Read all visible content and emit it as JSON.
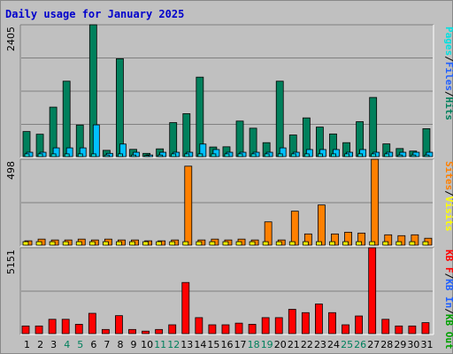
{
  "chart_data": {
    "type": "bar",
    "title": "Daily usage for January 2025",
    "colors": {
      "title": "#0000cc",
      "hits": "#00805c",
      "files": "#00c0ff",
      "pages": "#00e0e0",
      "visits": "#ffff00",
      "sites": "#ff8000",
      "kb_in": "#2060ff",
      "kb_out": "#00a000",
      "kb_f": "#ff0000",
      "weekend_day": "#00805c",
      "weekday": "#000000"
    },
    "x_labels": [
      "1",
      "2",
      "3",
      "4",
      "5",
      "6",
      "7",
      "8",
      "9",
      "10",
      "11",
      "12",
      "13",
      "14",
      "15",
      "16",
      "17",
      "18",
      "19",
      "20",
      "21",
      "22",
      "23",
      "24",
      "25",
      "26",
      "27",
      "28",
      "29",
      "30",
      "31"
    ],
    "weekend_days": [
      4,
      5,
      11,
      12,
      18,
      19,
      25,
      26
    ],
    "panels": [
      {
        "id": "hits_files",
        "ymax": 2405,
        "ymax_label": "2405",
        "legend": [
          {
            "text": "Pages",
            "color": "#00e0e0"
          },
          {
            "text": "/",
            "color": "#000000"
          },
          {
            "text": "Files",
            "color": "#2060ff"
          },
          {
            "text": "/",
            "color": "#000000"
          },
          {
            "text": "Hits",
            "color": "#00805c"
          }
        ],
        "series": [
          {
            "name": "Hits",
            "color": "#00805c",
            "values": [
              458,
              409,
              903,
              1376,
              577,
              2405,
              115,
              1786,
              133,
              60,
              142,
              621,
              784,
              1450,
              176,
              180,
              649,
              519,
              255,
              1376,
              395,
              707,
              539,
              414,
              255,
              638,
              1080,
              233,
              148,
              102,
              510
            ]
          },
          {
            "name": "Files",
            "color": "#00c0ff",
            "values": [
              80,
              80,
              160,
              160,
              160,
              580,
              60,
              230,
              80,
              30,
              80,
              80,
              80,
              230,
              130,
              80,
              80,
              80,
              80,
              160,
              80,
              130,
              130,
              130,
              80,
              130,
              80,
              80,
              80,
              80,
              80
            ]
          },
          {
            "name": "Pages",
            "color": "#00e0e0",
            "values": [
              50,
              50,
              50,
              50,
              50,
              50,
              30,
              50,
              30,
              20,
              30,
              50,
              50,
              50,
              50,
              50,
              50,
              50,
              50,
              50,
              50,
              50,
              50,
              50,
              50,
              50,
              50,
              50,
              30,
              30,
              30
            ]
          }
        ]
      },
      {
        "id": "visits_sites",
        "ymax": 498,
        "ymax_label": "498",
        "legend": [
          {
            "text": "Sites",
            "color": "#ff8000"
          },
          {
            "text": "/",
            "color": "#000000"
          },
          {
            "text": "Visits",
            "color": "#ffff00"
          }
        ],
        "series": [
          {
            "name": "Sites",
            "color": "#ff8000",
            "values": [
              25,
              35,
              30,
              30,
              35,
              30,
              35,
              30,
              30,
              25,
              25,
              30,
              458,
              30,
              35,
              30,
              35,
              30,
              135,
              30,
              197,
              65,
              233,
              65,
              75,
              70,
              498,
              60,
              55,
              60,
              40
            ]
          },
          {
            "name": "Visits",
            "color": "#ffff00",
            "values": [
              20,
              20,
              20,
              20,
              20,
              20,
              20,
              20,
              20,
              20,
              20,
              20,
              20,
              20,
              20,
              20,
              20,
              20,
              20,
              20,
              20,
              20,
              20,
              20,
              20,
              20,
              20,
              20,
              20,
              20,
              20
            ]
          }
        ]
      },
      {
        "id": "kbytes",
        "ymax": 5151,
        "ymax_label": "5151",
        "legend": [
          {
            "text": "KB F",
            "color": "#ff0000"
          },
          {
            "text": "/",
            "color": "#000000"
          },
          {
            "text": "KB In",
            "color": "#2060ff"
          },
          {
            "text": "/",
            "color": "#000000"
          },
          {
            "text": "KB Out",
            "color": "#00a000"
          }
        ],
        "series": [
          {
            "name": "KB F",
            "color": "#ff0000",
            "values": [
              460,
              460,
              860,
              860,
              560,
              1220,
              250,
              1080,
              250,
              150,
              250,
              530,
              3070,
              960,
              530,
              530,
              630,
              560,
              960,
              960,
              1460,
              1260,
              1780,
              1260,
              530,
              1060,
              5151,
              860,
              460,
              460,
              660
            ]
          }
        ]
      }
    ]
  }
}
